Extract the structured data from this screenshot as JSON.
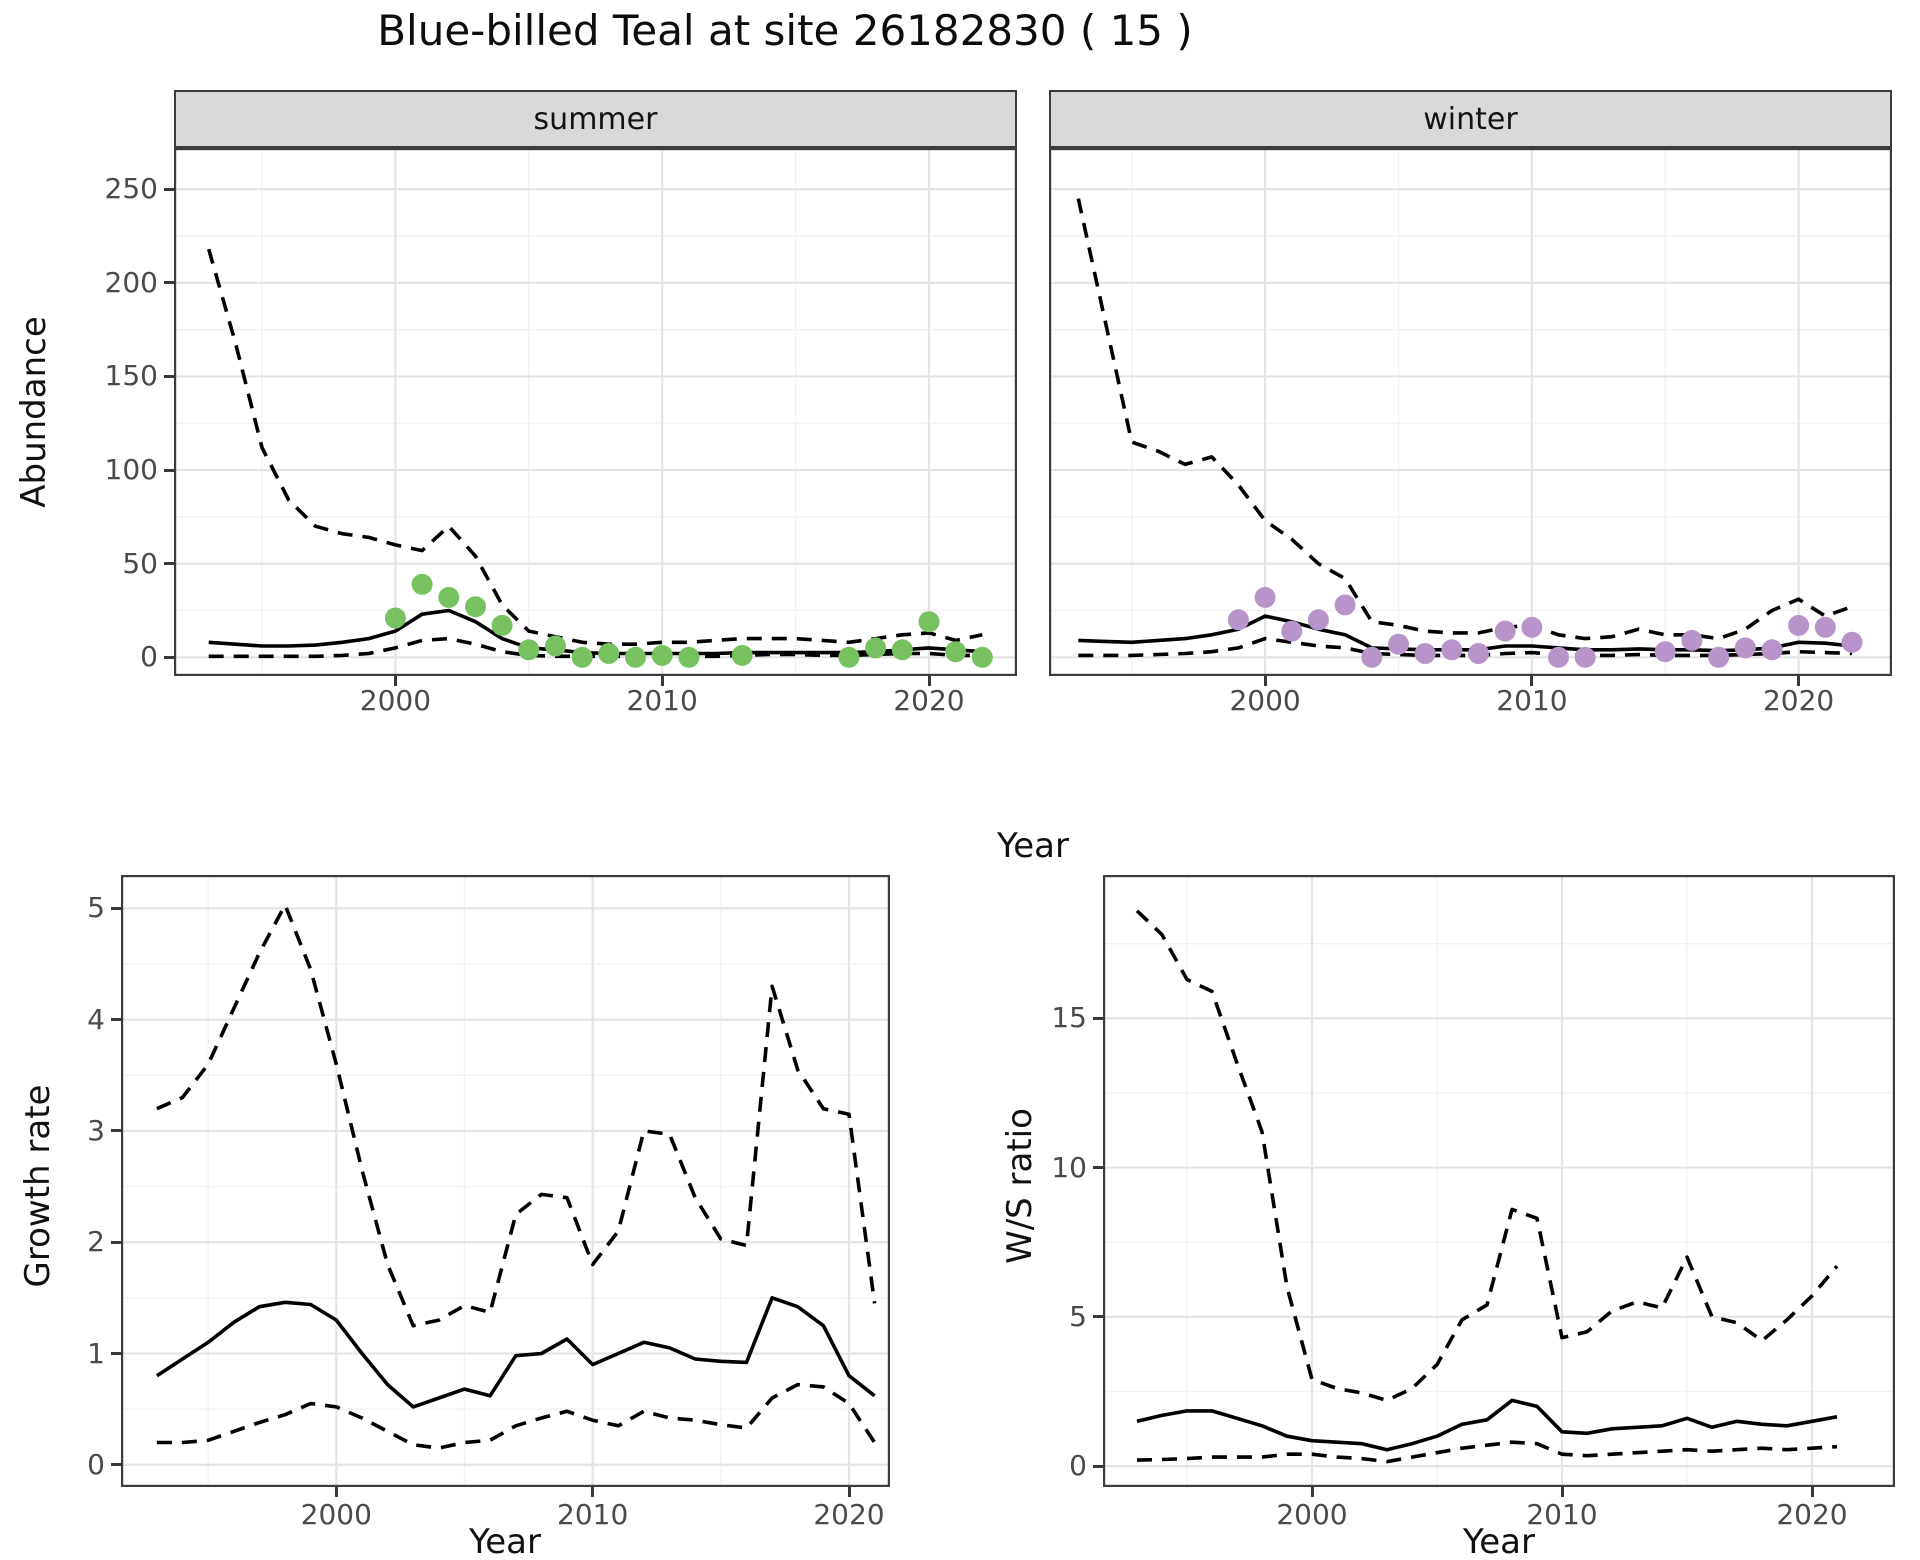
{
  "title": "Blue-billed Teal at site 26182830 ( 15 )",
  "facets": {
    "summer": "summer",
    "winter": "winter"
  },
  "axis_labels": {
    "abundance": "Abundance",
    "year_top": "Year",
    "growth": "Growth rate",
    "year_bottom_left": "Year",
    "ws": "W/S ratio",
    "year_bottom_right": "Year"
  },
  "colors": {
    "summer_points": "#78c161",
    "winter_points": "#b795ca",
    "line": "#000000",
    "grid_major": "#e4e4e4",
    "grid_minor": "#f2f2f2",
    "strip_bg": "#d9d9d9",
    "panel_border": "#3c3c3c",
    "axis_text": "#4a4a4a"
  },
  "chart_data": [
    {
      "id": "abundance-summer",
      "type": "line",
      "facet": "summer",
      "title": "",
      "xlabel": "Year",
      "ylabel": "Abundance",
      "x": [
        1993,
        1994,
        1995,
        1996,
        1997,
        1998,
        1999,
        2000,
        2001,
        2002,
        2003,
        2004,
        2005,
        2006,
        2007,
        2008,
        2009,
        2010,
        2011,
        2012,
        2013,
        2014,
        2015,
        2016,
        2017,
        2018,
        2019,
        2020,
        2021,
        2022
      ],
      "series": [
        {
          "name": "upper_ci",
          "style": "dashed",
          "values": [
            218,
            168,
            112,
            84,
            70,
            66,
            64,
            60,
            57,
            70,
            54,
            28,
            14,
            11,
            8,
            7,
            7,
            8,
            8,
            9,
            10,
            10,
            10,
            9,
            8,
            10,
            12,
            13,
            9,
            12
          ]
        },
        {
          "name": "mean",
          "style": "solid",
          "values": [
            8,
            7,
            6,
            6,
            6.5,
            8,
            10,
            14,
            23,
            25,
            19,
            10,
            5,
            4,
            2.5,
            2,
            2,
            2,
            2,
            2,
            2.5,
            2.5,
            2.5,
            2.5,
            2.5,
            3,
            4,
            5,
            4,
            3
          ]
        },
        {
          "name": "lower_ci",
          "style": "dashed",
          "values": [
            0.5,
            0.5,
            0.5,
            0.5,
            0.5,
            1,
            2,
            5,
            9,
            10,
            7,
            3,
            1,
            0.5,
            0.5,
            0.5,
            0.5,
            0.5,
            0.5,
            0.5,
            1,
            1.5,
            1.5,
            1,
            1,
            1.5,
            2,
            2,
            1,
            1
          ]
        }
      ],
      "points": {
        "name": "observed_counts",
        "color_key": "summer_points",
        "data": [
          [
            2000,
            21
          ],
          [
            2001,
            39
          ],
          [
            2002,
            32
          ],
          [
            2003,
            27
          ],
          [
            2004,
            17
          ],
          [
            2005,
            4
          ],
          [
            2006,
            6
          ],
          [
            2007,
            0
          ],
          [
            2008,
            2
          ],
          [
            2009,
            0
          ],
          [
            2010,
            1
          ],
          [
            2011,
            0
          ],
          [
            2013,
            1
          ],
          [
            2017,
            0
          ],
          [
            2018,
            5
          ],
          [
            2019,
            4
          ],
          [
            2020,
            19
          ],
          [
            2021,
            3
          ],
          [
            2022,
            0
          ]
        ]
      },
      "xticks": [
        2000,
        2010,
        2020
      ],
      "yticks": [
        0,
        50,
        100,
        150,
        200,
        250
      ],
      "xlim": [
        1991.7,
        2023.3
      ],
      "ylim": [
        -10,
        272
      ]
    },
    {
      "id": "abundance-winter",
      "type": "line",
      "facet": "winter",
      "title": "",
      "xlabel": "Year",
      "ylabel": "Abundance",
      "x": [
        1993,
        1994,
        1995,
        1996,
        1997,
        1998,
        1999,
        2000,
        2001,
        2002,
        2003,
        2004,
        2005,
        2006,
        2007,
        2008,
        2009,
        2010,
        2011,
        2012,
        2013,
        2014,
        2015,
        2016,
        2017,
        2018,
        2019,
        2020,
        2021,
        2022
      ],
      "series": [
        {
          "name": "upper_ci",
          "style": "dashed",
          "values": [
            245,
            180,
            115,
            110,
            103,
            107,
            92,
            73,
            63,
            50,
            42,
            19,
            17,
            14,
            13,
            13,
            16,
            17,
            12,
            10,
            11,
            15,
            12,
            12,
            10,
            15,
            25,
            31,
            22,
            27
          ]
        },
        {
          "name": "mean",
          "style": "solid",
          "values": [
            9,
            8.5,
            8,
            9,
            10,
            12,
            15,
            22,
            19,
            15,
            12,
            5,
            4.5,
            4,
            4,
            4,
            6,
            6,
            5,
            4,
            4,
            4.5,
            4,
            4,
            3.5,
            4,
            5,
            8,
            7.5,
            6
          ]
        },
        {
          "name": "lower_ci",
          "style": "dashed",
          "values": [
            1,
            1,
            1,
            1.5,
            2,
            3,
            5,
            10,
            8,
            6,
            5,
            2,
            1.5,
            1,
            1,
            1,
            2,
            2.5,
            1.5,
            1,
            1,
            1.5,
            1,
            1,
            1,
            1.5,
            2,
            3,
            2.5,
            2
          ]
        }
      ],
      "points": {
        "name": "observed_counts",
        "color_key": "winter_points",
        "data": [
          [
            1999,
            20
          ],
          [
            2000,
            32
          ],
          [
            2001,
            14
          ],
          [
            2002,
            20
          ],
          [
            2003,
            28
          ],
          [
            2004,
            0
          ],
          [
            2005,
            7
          ],
          [
            2006,
            2
          ],
          [
            2007,
            4
          ],
          [
            2008,
            2
          ],
          [
            2009,
            14
          ],
          [
            2010,
            16
          ],
          [
            2011,
            0
          ],
          [
            2012,
            0
          ],
          [
            2015,
            3
          ],
          [
            2016,
            9
          ],
          [
            2017,
            0
          ],
          [
            2018,
            5
          ],
          [
            2019,
            4
          ],
          [
            2020,
            17
          ],
          [
            2021,
            16
          ],
          [
            2022,
            8
          ]
        ]
      },
      "xticks": [
        2000,
        2010,
        2020
      ],
      "yticks": [
        0,
        50,
        100,
        150,
        200,
        250
      ],
      "xlim": [
        1991.9,
        2023.5
      ],
      "ylim": [
        -10,
        272
      ]
    },
    {
      "id": "growth-rate",
      "type": "line",
      "facet": "",
      "title": "",
      "xlabel": "Year",
      "ylabel": "Growth rate",
      "x": [
        1993,
        1994,
        1995,
        1996,
        1997,
        1998,
        1999,
        2000,
        2001,
        2002,
        2003,
        2004,
        2005,
        2006,
        2007,
        2008,
        2009,
        2010,
        2011,
        2012,
        2013,
        2014,
        2015,
        2016,
        2017,
        2018,
        2019,
        2020,
        2021
      ],
      "series": [
        {
          "name": "upper_ci",
          "style": "dashed",
          "values": [
            3.2,
            3.3,
            3.6,
            4.1,
            4.6,
            5.03,
            4.45,
            3.6,
            2.65,
            1.8,
            1.25,
            1.3,
            1.43,
            1.37,
            2.25,
            2.43,
            2.4,
            1.8,
            2.1,
            3.0,
            2.97,
            2.4,
            2.03,
            1.97,
            4.3,
            3.55,
            3.2,
            3.15,
            1.45
          ]
        },
        {
          "name": "mean",
          "style": "solid",
          "values": [
            0.8,
            0.95,
            1.1,
            1.28,
            1.42,
            1.46,
            1.44,
            1.3,
            1.0,
            0.72,
            0.52,
            0.6,
            0.68,
            0.62,
            0.98,
            1.0,
            1.13,
            0.9,
            1.0,
            1.1,
            1.05,
            0.95,
            0.93,
            0.92,
            1.5,
            1.42,
            1.25,
            0.8,
            0.62
          ]
        },
        {
          "name": "lower_ci",
          "style": "dashed",
          "values": [
            0.2,
            0.2,
            0.22,
            0.3,
            0.38,
            0.45,
            0.55,
            0.52,
            0.42,
            0.3,
            0.18,
            0.15,
            0.2,
            0.22,
            0.35,
            0.42,
            0.48,
            0.4,
            0.35,
            0.48,
            0.42,
            0.4,
            0.36,
            0.33,
            0.6,
            0.72,
            0.7,
            0.55,
            0.2
          ]
        }
      ],
      "points": null,
      "xticks": [
        2000,
        2010,
        2020
      ],
      "yticks": [
        0,
        1,
        2,
        3,
        4,
        5
      ],
      "xlim": [
        1991.6,
        2021.6
      ],
      "ylim": [
        -0.2,
        5.3
      ]
    },
    {
      "id": "ws-ratio",
      "type": "line",
      "facet": "",
      "title": "",
      "xlabel": "Year",
      "ylabel": "W/S ratio",
      "x": [
        1993,
        1994,
        1995,
        1996,
        1997,
        1998,
        1999,
        2000,
        2001,
        2002,
        2003,
        2004,
        2005,
        2006,
        2007,
        2008,
        2009,
        2010,
        2011,
        2012,
        2013,
        2014,
        2015,
        2016,
        2017,
        2018,
        2019,
        2020,
        2021
      ],
      "series": [
        {
          "name": "upper_ci",
          "style": "dashed",
          "values": [
            18.6,
            17.8,
            16.3,
            15.9,
            13.5,
            11.2,
            6.0,
            2.9,
            2.6,
            2.45,
            2.2,
            2.6,
            3.4,
            4.9,
            5.4,
            8.6,
            8.3,
            4.3,
            4.5,
            5.2,
            5.5,
            5.3,
            7.0,
            5.0,
            4.8,
            4.2,
            4.9,
            5.7,
            6.7
          ]
        },
        {
          "name": "mean",
          "style": "solid",
          "values": [
            1.5,
            1.7,
            1.85,
            1.85,
            1.6,
            1.35,
            1.0,
            0.85,
            0.8,
            0.75,
            0.55,
            0.75,
            1.0,
            1.4,
            1.55,
            2.2,
            2.0,
            1.15,
            1.1,
            1.25,
            1.3,
            1.35,
            1.6,
            1.3,
            1.5,
            1.4,
            1.35,
            1.5,
            1.65
          ]
        },
        {
          "name": "lower_ci",
          "style": "dashed",
          "values": [
            0.2,
            0.22,
            0.25,
            0.3,
            0.3,
            0.3,
            0.4,
            0.4,
            0.3,
            0.25,
            0.15,
            0.3,
            0.45,
            0.6,
            0.7,
            0.8,
            0.75,
            0.4,
            0.35,
            0.4,
            0.45,
            0.5,
            0.55,
            0.5,
            0.55,
            0.6,
            0.55,
            0.6,
            0.65
          ]
        }
      ],
      "points": null,
      "xticks": [
        2000,
        2010,
        2020
      ],
      "yticks": [
        0,
        5,
        10,
        15
      ],
      "xlim": [
        1991.64,
        2023.32
      ],
      "ylim": [
        -0.7,
        19.8
      ]
    }
  ]
}
